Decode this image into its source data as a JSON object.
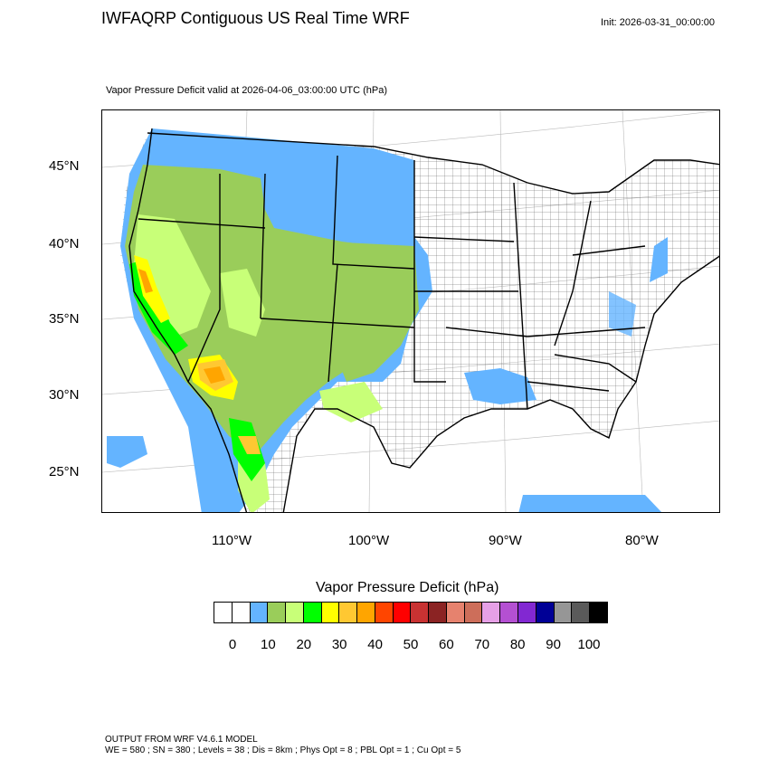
{
  "header": {
    "title": "IWFAQRP Contiguous US Real Time WRF",
    "init": "Init: 2026-03-31_00:00:00",
    "subtitle": "Vapor Pressure Deficit valid at 2026-04-06_03:00:00 UTC   (hPa)"
  },
  "map": {
    "lat_labels": [
      "45°N",
      "40°N",
      "35°N",
      "30°N",
      "25°N"
    ],
    "lon_labels": [
      "110°W",
      "100°W",
      "90°W",
      "80°W"
    ]
  },
  "colorbar": {
    "title": "Vapor Pressure Deficit  (hPa)",
    "labels": [
      "0",
      "10",
      "20",
      "30",
      "40",
      "50",
      "60",
      "70",
      "80",
      "90",
      "100"
    ],
    "colors": [
      "#ffffff",
      "#ffffff",
      "#64b4ff",
      "#9acd5a",
      "#c8ff78",
      "#00ff00",
      "#ffff00",
      "#ffc832",
      "#ffa500",
      "#ff4500",
      "#ff0000",
      "#c83232",
      "#8b2323",
      "#e6826e",
      "#cd6e5a",
      "#e6a0e6",
      "#b450d2",
      "#8228d2",
      "#000096",
      "#969696",
      "#5a5a5a",
      "#000000"
    ]
  },
  "footer": {
    "line1": "OUTPUT FROM WRF V4.6.1 MODEL",
    "line2": "WE = 580 ; SN = 380 ; Levels = 38 ; Dis = 8km ; Phys Opt = 8 ; PBL Opt = 1 ; Cu Opt = 5"
  }
}
